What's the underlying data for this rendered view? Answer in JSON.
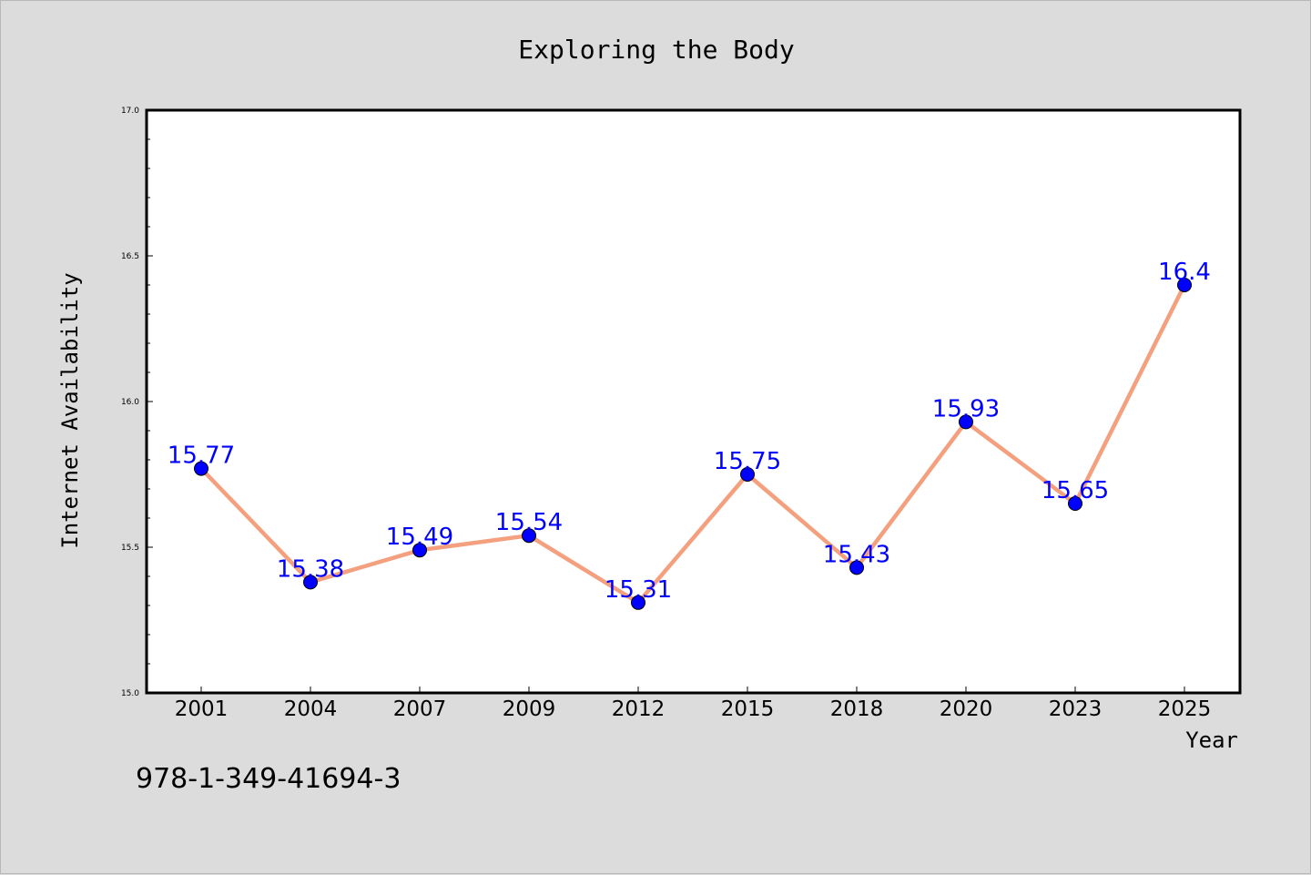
{
  "chart_data": {
    "type": "line",
    "title": "Exploring the Body",
    "xlabel": "Year",
    "ylabel": "Internet Availability",
    "categories": [
      "2001",
      "2004",
      "2007",
      "2009",
      "2012",
      "2015",
      "2018",
      "2020",
      "2023",
      "2025"
    ],
    "series": [
      {
        "values": [
          15.77,
          15.38,
          15.49,
          15.54,
          15.31,
          15.75,
          15.43,
          15.93,
          15.65,
          16.4
        ]
      }
    ],
    "data_labels": [
      "15.77",
      "15.38",
      "15.49",
      "15.54",
      "15.31",
      "15.75",
      "15.43",
      "15.93",
      "15.65",
      "16.4"
    ],
    "ylim": [
      15.0,
      17.0
    ],
    "yticks": [
      "15.0",
      "15.5",
      "16.0",
      "16.5",
      "17.0"
    ],
    "grid": false,
    "line_color": "#f4a07e",
    "marker_color": "#0000ff",
    "label_color": "#0000ff"
  },
  "caption": "978-1-349-41694-3"
}
